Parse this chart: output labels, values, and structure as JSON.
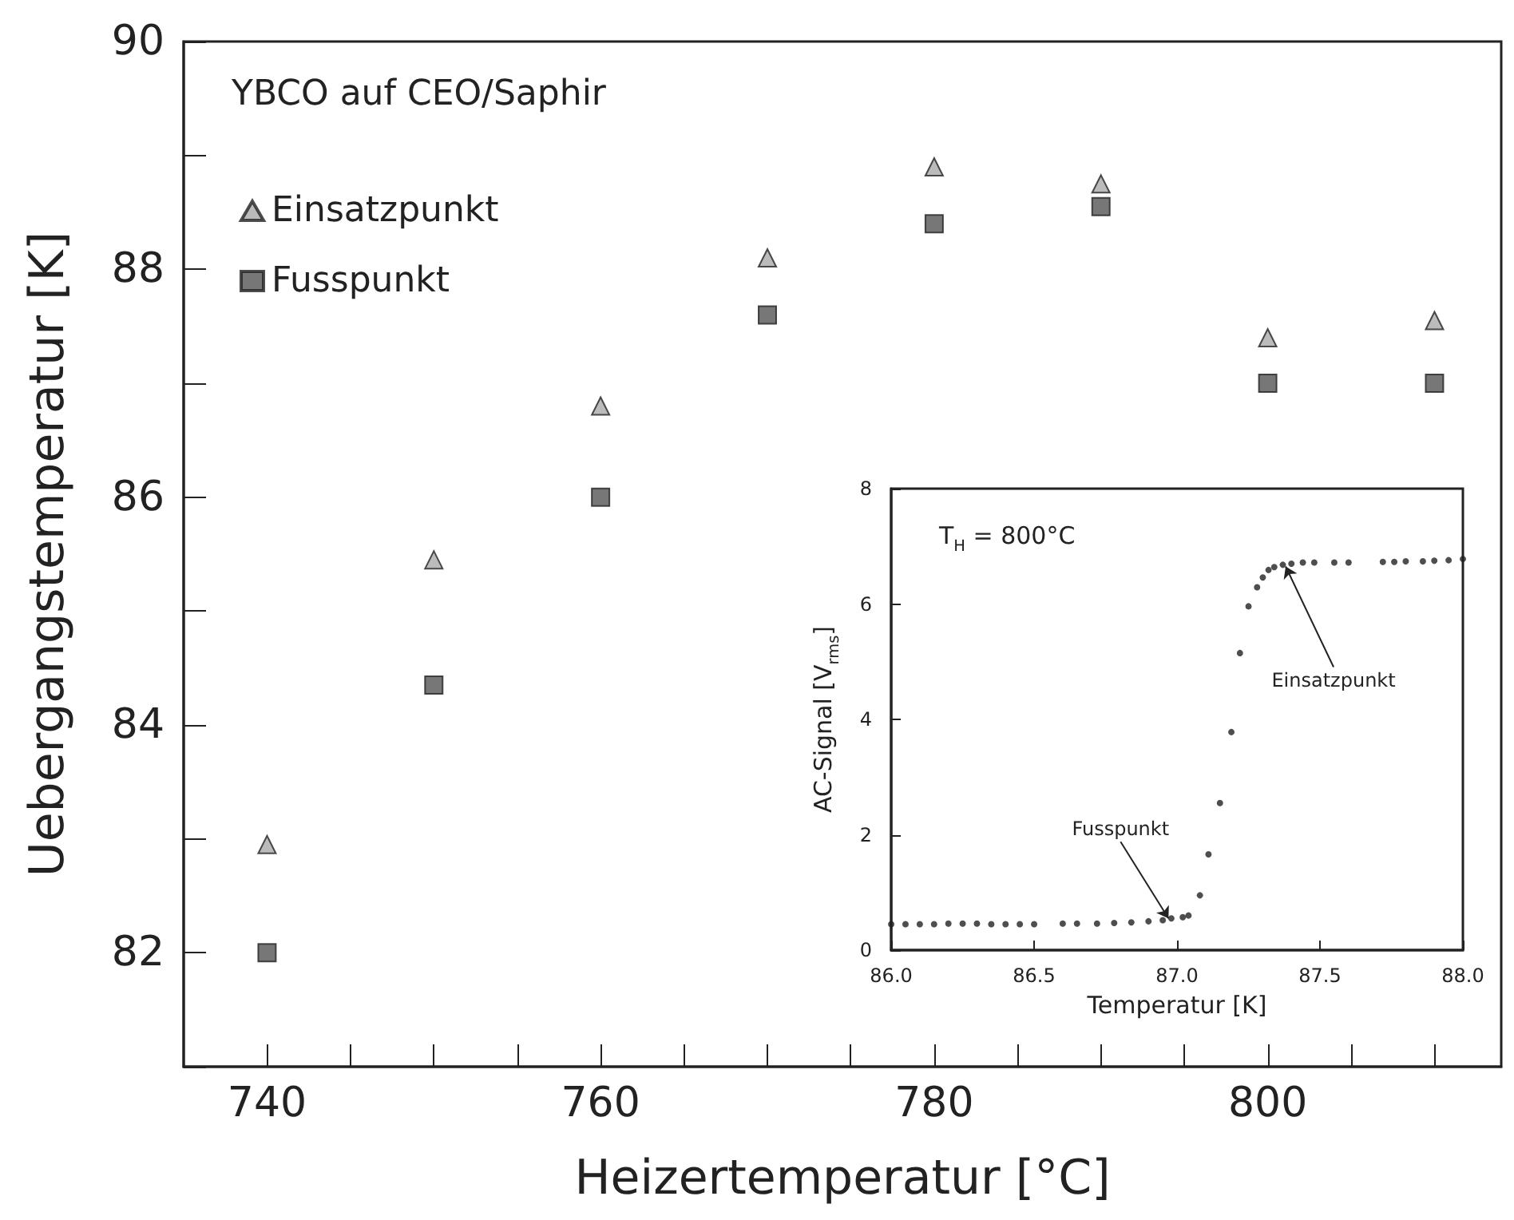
{
  "chart_data": [
    {
      "type": "scatter",
      "xlabel": "Heizertemperatur [°C]",
      "ylabel": "Uebergangstemperatur [K]",
      "annotations": [
        "YBCO auf CEO/Saphir"
      ],
      "x": [
        740,
        750,
        760,
        770,
        780,
        790,
        800,
        810
      ],
      "series": [
        {
          "name": "Einsatzpunkt",
          "color": "#aaaaaa",
          "marker": "triangle",
          "values": [
            82.95,
            85.45,
            86.8,
            88.1,
            88.9,
            88.75,
            87.4,
            87.55
          ]
        },
        {
          "name": "Fusspunkt",
          "color": "#555555",
          "marker": "square",
          "values": [
            82.0,
            84.35,
            86.0,
            87.6,
            88.4,
            88.55,
            87.0,
            87.0
          ]
        }
      ],
      "xlim": [
        735,
        814
      ],
      "xticks": [
        740,
        {
          "value": 745,
          "label": null
        },
        {
          "value": 750,
          "label": null
        },
        {
          "value": 755,
          "label": null
        },
        760,
        {
          "value": 765,
          "label": null
        },
        {
          "value": 770,
          "label": null
        },
        {
          "value": 775,
          "label": null
        },
        780,
        {
          "value": 785,
          "label": null
        },
        {
          "value": 790,
          "label": null
        },
        {
          "value": 795,
          "label": null
        },
        800,
        {
          "value": 805,
          "label": null
        },
        {
          "value": 810,
          "label": null
        }
      ],
      "ylim": [
        81,
        90
      ],
      "yticks": [
        {
          "value": 81,
          "label": null
        },
        82,
        {
          "value": 83,
          "label": null
        },
        84,
        {
          "value": 85,
          "label": null
        },
        86,
        {
          "value": 87,
          "label": null
        },
        88,
        {
          "value": 89,
          "label": null
        },
        90
      ],
      "grid": false,
      "legend": "top left"
    },
    {
      "type": "scatter",
      "xlabel": "Temperatur [K]",
      "ylabel": "AC-Signal [V$_{rms}$]",
      "marker": "circle",
      "annotations": [
        "T$_{H}$ = 800°C",
        {
          "text": "Fusspunkt",
          "x": 86.97,
          "y": 0.55
        },
        {
          "text": "Einsatzpunkt",
          "x": 87.38,
          "y": 6.65
        }
      ],
      "x": [
        86.0,
        86.05,
        86.1,
        86.15,
        86.2,
        86.25,
        86.3,
        86.35,
        86.4,
        86.45,
        86.5,
        86.6,
        86.65,
        86.72,
        86.78,
        86.84,
        86.9,
        86.95,
        86.98,
        87.02,
        87.04,
        87.08,
        87.11,
        87.15,
        87.19,
        87.22,
        87.25,
        87.28,
        87.3,
        87.32,
        87.34,
        87.37,
        87.4,
        87.44,
        87.48,
        87.55,
        87.6,
        87.72,
        87.76,
        87.8,
        87.86,
        87.9,
        87.95,
        88.0
      ],
      "series": [
        {
          "color": "#222222",
          "values": [
            0.45,
            0.45,
            0.45,
            0.45,
            0.46,
            0.46,
            0.46,
            0.45,
            0.45,
            0.45,
            0.45,
            0.46,
            0.46,
            0.46,
            0.47,
            0.48,
            0.5,
            0.52,
            0.55,
            0.57,
            0.6,
            0.95,
            1.66,
            2.55,
            3.78,
            5.15,
            5.96,
            6.29,
            6.46,
            6.59,
            6.64,
            6.68,
            6.7,
            6.72,
            6.72,
            6.72,
            6.72,
            6.73,
            6.73,
            6.74,
            6.74,
            6.75,
            6.76,
            6.78
          ]
        }
      ],
      "xlim": [
        86,
        88
      ],
      "xticks": [
        {
          "value": 86,
          "label": "86.0"
        },
        86.5,
        {
          "value": 87,
          "label": "87.0"
        },
        87.5,
        {
          "value": 88,
          "label": "88.0"
        }
      ],
      "ylim": [
        0,
        8
      ],
      "yticks": [
        0,
        2,
        4,
        6,
        8
      ],
      "grid": false,
      "legend": false
    }
  ]
}
